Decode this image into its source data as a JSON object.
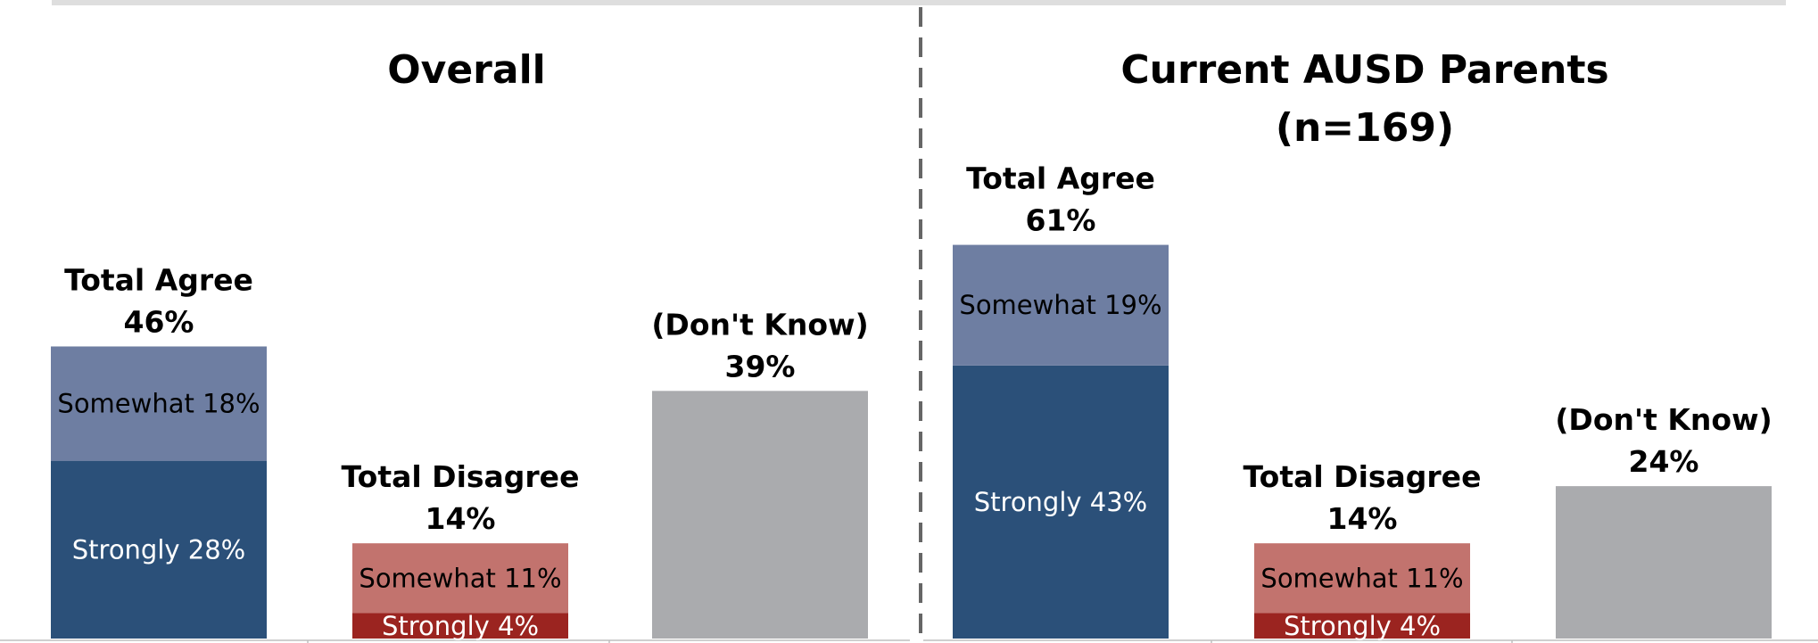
{
  "chart_data": [
    {
      "type": "bar",
      "title": "Overall",
      "subtitle": "",
      "categories": [
        "Total Agree",
        "Total Disagree",
        "(Don't Know)"
      ],
      "stacks": [
        {
          "category": "Total Agree",
          "total_label": "Total Agree",
          "total_value": "46%",
          "segments": [
            {
              "name": "Strongly",
              "value": 28,
              "label": "Strongly 28%"
            },
            {
              "name": "Somewhat",
              "value": 18,
              "label": "Somewhat 18%"
            }
          ]
        },
        {
          "category": "Total Disagree",
          "total_label": "Total Disagree",
          "total_value": "14%",
          "segments": [
            {
              "name": "Strongly",
              "value": 4,
              "label": "Strongly 4%"
            },
            {
              "name": "Somewhat",
              "value": 11,
              "label": "Somewhat 11%"
            }
          ]
        },
        {
          "category": "(Don't Know)",
          "total_label": "(Don't Know)",
          "total_value": "39%",
          "segments": [
            {
              "name": "Don't Know",
              "value": 39,
              "label": ""
            }
          ]
        }
      ],
      "ylim": [
        0,
        70
      ]
    },
    {
      "type": "bar",
      "title": "Current AUSD Parents",
      "subtitle": "(n=169)",
      "categories": [
        "Total Agree",
        "Total Disagree",
        "(Don't Know)"
      ],
      "stacks": [
        {
          "category": "Total Agree",
          "total_label": "Total Agree",
          "total_value": "61%",
          "segments": [
            {
              "name": "Strongly",
              "value": 43,
              "label": "Strongly 43%"
            },
            {
              "name": "Somewhat",
              "value": 19,
              "label": "Somewhat 19%"
            }
          ]
        },
        {
          "category": "Total Disagree",
          "total_label": "Total Disagree",
          "total_value": "14%",
          "segments": [
            {
              "name": "Strongly",
              "value": 4,
              "label": "Strongly 4%"
            },
            {
              "name": "Somewhat",
              "value": 11,
              "label": "Somewhat 11%"
            }
          ]
        },
        {
          "category": "(Don't Know)",
          "total_label": "(Don't Know)",
          "total_value": "24%",
          "segments": [
            {
              "name": "Don't Know",
              "value": 24,
              "label": ""
            }
          ]
        }
      ],
      "ylim": [
        0,
        70
      ]
    }
  ],
  "colors": {
    "agree_strongly": "#2b5079",
    "agree_somewhat": "#6e7ea2",
    "disagree_strongly": "#9b2420",
    "disagree_somewhat": "#c2736e",
    "dont_know": "#aaabae",
    "agree_strongly_text": "#ffffff",
    "agree_somewhat_text": "#000000",
    "disagree_strongly_text": "#ffffff",
    "disagree_somewhat_text": "#000000",
    "divider": "#666666"
  }
}
